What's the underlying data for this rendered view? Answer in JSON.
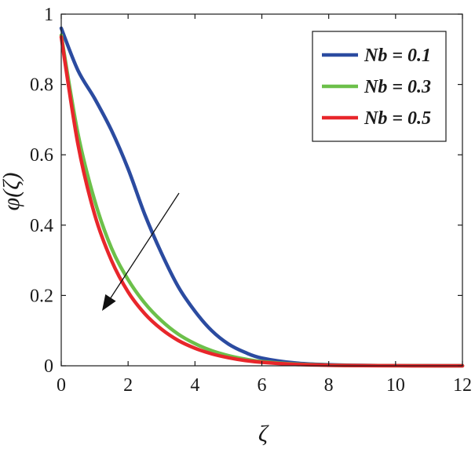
{
  "chart_data": {
    "type": "line",
    "xlabel": "ζ",
    "ylabel": "φ(ζ)",
    "xlim": [
      0,
      12
    ],
    "ylim": [
      0,
      1
    ],
    "xticks": [
      0,
      2,
      4,
      6,
      8,
      10,
      12
    ],
    "xtick_labels": [
      "0",
      "2",
      "4",
      "6",
      "8",
      "10",
      "12"
    ],
    "yticks": [
      0,
      0.2,
      0.4,
      0.6,
      0.8,
      1
    ],
    "ytick_labels": [
      "0",
      "0.2",
      "0.4",
      "0.6",
      "0.8",
      "1"
    ],
    "grid": false,
    "legend_position": "top-right",
    "annotation": "arrow pointing toward decreasing φ as Nb increases",
    "series": [
      {
        "name": "Nb = 0.1",
        "color": "#2b4ba0",
        "x": [
          0,
          0.5,
          1,
          1.5,
          2,
          2.5,
          3,
          3.5,
          4,
          4.5,
          5,
          5.5,
          6,
          7,
          8,
          9,
          10,
          11,
          12
        ],
        "y": [
          0.96,
          0.84,
          0.76,
          0.67,
          0.56,
          0.43,
          0.32,
          0.225,
          0.155,
          0.1,
          0.062,
          0.038,
          0.022,
          0.008,
          0.003,
          0.001,
          0.0005,
          0.0002,
          0
        ]
      },
      {
        "name": "Nb = 0.3",
        "color": "#6cc04a",
        "x": [
          0,
          0.5,
          1,
          1.5,
          2,
          2.5,
          3,
          3.5,
          4,
          4.5,
          5,
          5.5,
          6,
          7,
          8,
          9,
          10,
          11,
          12
        ],
        "y": [
          0.94,
          0.66,
          0.47,
          0.335,
          0.245,
          0.178,
          0.128,
          0.09,
          0.063,
          0.043,
          0.029,
          0.019,
          0.012,
          0.005,
          0.002,
          0.0008,
          0.0003,
          0.0001,
          0
        ]
      },
      {
        "name": "Nb = 0.5",
        "color": "#e8262b",
        "x": [
          0,
          0.5,
          1,
          1.5,
          2,
          2.5,
          3,
          3.5,
          4,
          4.5,
          5,
          5.5,
          6,
          7,
          8,
          9,
          10,
          11,
          12
        ],
        "y": [
          0.935,
          0.63,
          0.43,
          0.3,
          0.21,
          0.148,
          0.104,
          0.072,
          0.05,
          0.034,
          0.023,
          0.015,
          0.01,
          0.004,
          0.0015,
          0.0006,
          0.0002,
          0.0001,
          0
        ]
      }
    ]
  }
}
